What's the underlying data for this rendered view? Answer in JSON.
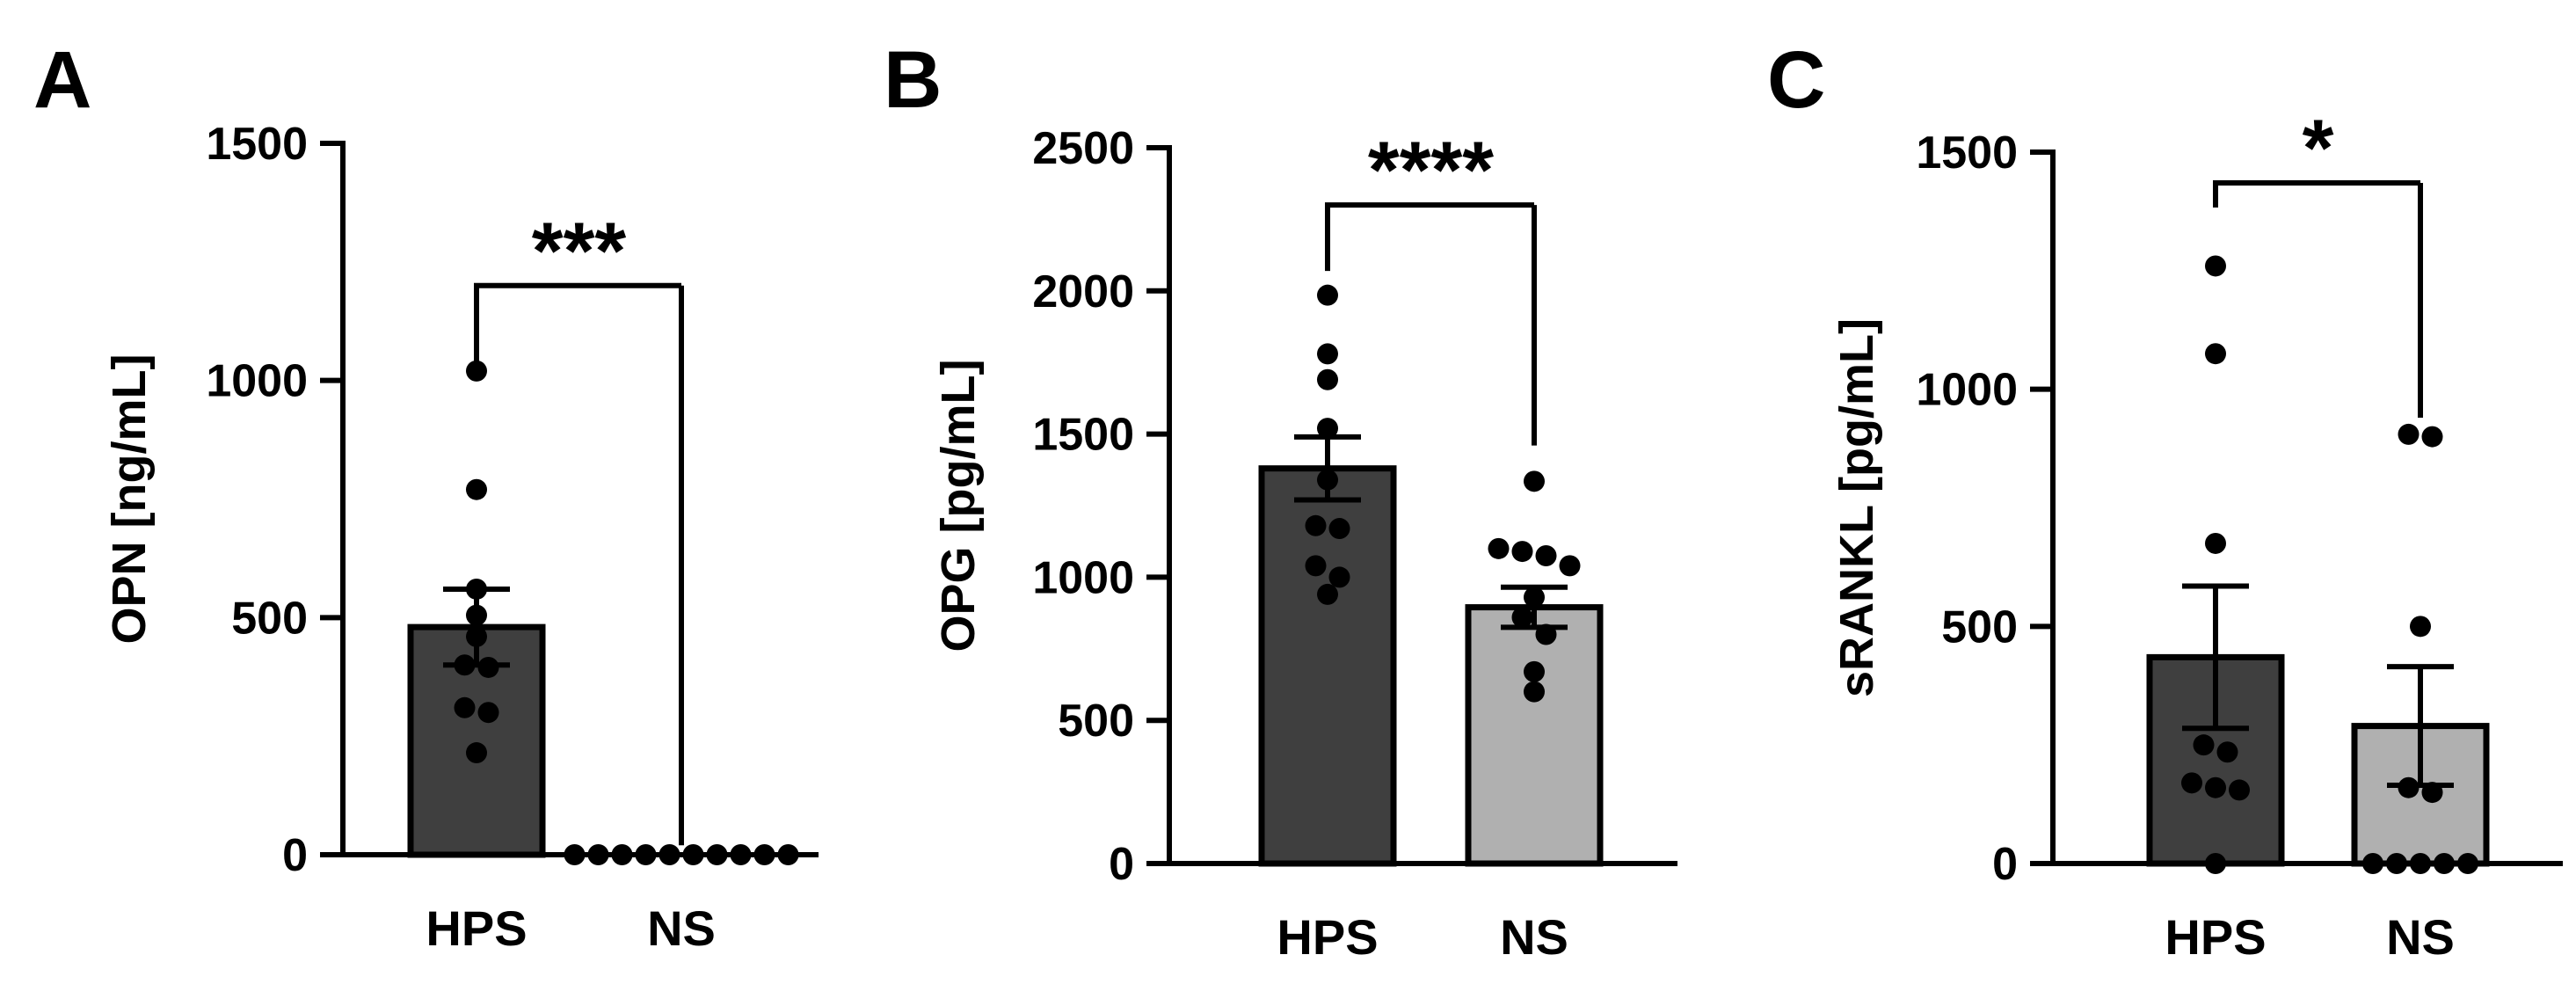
{
  "colors": {
    "hps_bar": "#3f3f3f",
    "ns_bar": "#b0b0b0",
    "outline": "#000000",
    "dot": "#000000"
  },
  "chart_data": [
    {
      "type": "bar",
      "panel": "A",
      "ylabel": "OPN [ng/mL]",
      "ylim": [
        0,
        1500
      ],
      "yticks": [
        0,
        500,
        1000,
        1500
      ],
      "categories": [
        "HPS",
        "NS"
      ],
      "values": [
        480,
        0
      ],
      "sem": [
        80,
        0
      ],
      "points": [
        [
          1020,
          770,
          560,
          505,
          460,
          400,
          395,
          310,
          300,
          215
        ],
        [
          0,
          0,
          0,
          0,
          0,
          0,
          0,
          0,
          0,
          0
        ]
      ],
      "significance": "***",
      "bracket_y": 1200,
      "legend": false,
      "grid": false
    },
    {
      "type": "bar",
      "panel": "B",
      "ylabel": "OPG [pg/mL]",
      "ylim": [
        0,
        2500
      ],
      "yticks": [
        0,
        500,
        1000,
        1500,
        2000,
        2500
      ],
      "categories": [
        "HPS",
        "NS"
      ],
      "values": [
        1380,
        895
      ],
      "sem": [
        110,
        70
      ],
      "points": [
        [
          1985,
          1780,
          1690,
          1520,
          1340,
          1180,
          1170,
          1040,
          1000,
          940
        ],
        [
          1335,
          1100,
          1090,
          1075,
          1040,
          930,
          860,
          800,
          670,
          600
        ]
      ],
      "significance": "****",
      "bracket_y": 2300,
      "legend": false,
      "grid": false
    },
    {
      "type": "bar",
      "panel": "C",
      "ylabel": "sRANKL [pg/mL]",
      "ylim": [
        0,
        1500
      ],
      "yticks": [
        0,
        500,
        1000,
        1500
      ],
      "categories": [
        "HPS",
        "NS"
      ],
      "values": [
        435,
        290
      ],
      "sem": [
        150,
        125
      ],
      "points": [
        [
          1260,
          1075,
          675,
          250,
          235,
          170,
          160,
          155,
          0
        ],
        [
          905,
          900,
          500,
          160,
          150,
          0,
          0,
          0,
          0,
          0
        ]
      ],
      "significance": "*",
      "bracket_y": 1435,
      "legend": false,
      "grid": false
    }
  ]
}
